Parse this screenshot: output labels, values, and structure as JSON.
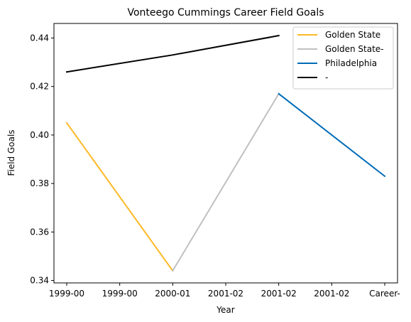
{
  "chart_data": {
    "type": "line",
    "title": "Vonteego Cummings Career Field Goals",
    "xlabel": "Year",
    "ylabel": "Field Goals",
    "categories": [
      "1999-00",
      "1999-00",
      "2000-01",
      "2001-02",
      "2001-02",
      "2001-02",
      "Career-"
    ],
    "ylim": [
      0.339,
      0.446
    ],
    "yticks": [
      0.34,
      0.36,
      0.38,
      0.4,
      0.42,
      0.44
    ],
    "ytick_labels": [
      "0.34",
      "0.36",
      "0.38",
      "0.40",
      "0.42",
      "0.44"
    ],
    "grid": false,
    "legend_position": "top-right",
    "series": [
      {
        "name": "Golden State",
        "color": "#FDB927",
        "points": [
          {
            "x": 0,
            "y": 0.405
          },
          {
            "x": 2,
            "y": 0.344
          }
        ]
      },
      {
        "name": "Golden State-",
        "color": "#BEC0C2",
        "points": [
          {
            "x": 2,
            "y": 0.344
          },
          {
            "x": 4,
            "y": 0.417
          }
        ]
      },
      {
        "name": "Philadelphia",
        "color": "#006BB6",
        "points": [
          {
            "x": 4,
            "y": 0.417
          },
          {
            "x": 6,
            "y": 0.383
          }
        ]
      },
      {
        "name": "-",
        "color": "#000000",
        "points": [
          {
            "x": 0,
            "y": 0.426
          },
          {
            "x": 2,
            "y": 0.433
          },
          {
            "x": 4,
            "y": 0.441
          }
        ]
      }
    ]
  }
}
